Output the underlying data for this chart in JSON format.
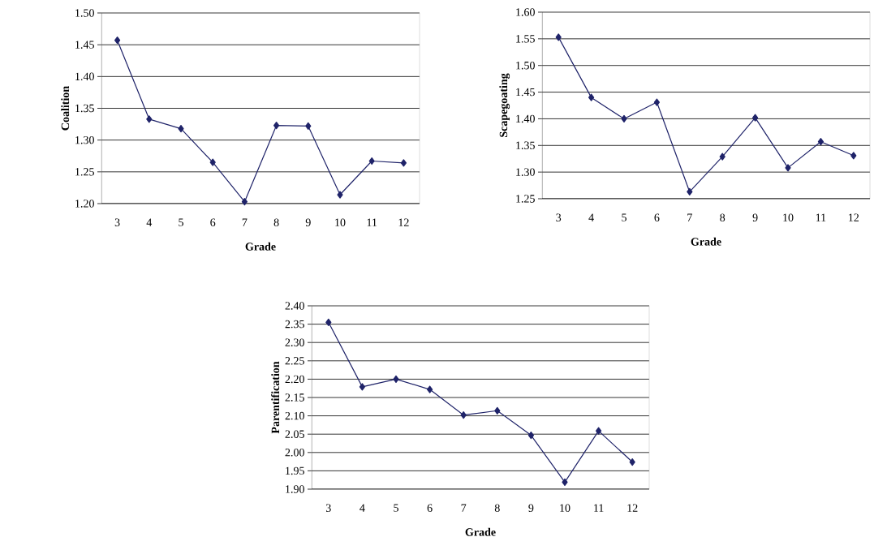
{
  "chart_data": [
    {
      "type": "line",
      "xlabel": "Grade",
      "ylabel": "Coalition",
      "categories": [
        "3",
        "4",
        "5",
        "6",
        "7",
        "8",
        "9",
        "10",
        "11",
        "12"
      ],
      "series": [
        {
          "color": "#1f2369",
          "values": [
            1.457,
            1.333,
            1.318,
            1.265,
            1.203,
            1.323,
            1.322,
            1.214,
            1.267,
            1.264
          ]
        }
      ],
      "ylim": [
        1.2,
        1.5
      ],
      "yticks": [
        {
          "value": 1.2,
          "label": "1.20"
        },
        {
          "value": 1.25,
          "label": "1.25"
        },
        {
          "value": 1.3,
          "label": "1.30"
        },
        {
          "value": 1.35,
          "label": "1.35"
        },
        {
          "value": 1.4,
          "label": "1.40"
        },
        {
          "value": 1.45,
          "label": "1.45"
        },
        {
          "value": 1.5,
          "label": "1.50"
        }
      ],
      "grid": "y",
      "marker": "diamond",
      "line_style": "solid"
    },
    {
      "type": "line",
      "xlabel": "Grade",
      "ylabel": "Scapegoating",
      "categories": [
        "3",
        "4",
        "5",
        "6",
        "7",
        "8",
        "9",
        "10",
        "11",
        "12"
      ],
      "series": [
        {
          "color": "#1f2369",
          "values": [
            1.553,
            1.44,
            1.4,
            1.431,
            1.263,
            1.329,
            1.402,
            1.308,
            1.357,
            1.331
          ]
        }
      ],
      "ylim": [
        1.25,
        1.6
      ],
      "yticks": [
        {
          "value": 1.25,
          "label": "1.25"
        },
        {
          "value": 1.3,
          "label": "1.30"
        },
        {
          "value": 1.35,
          "label": "1.35"
        },
        {
          "value": 1.4,
          "label": "1.40"
        },
        {
          "value": 1.45,
          "label": "1.45"
        },
        {
          "value": 1.5,
          "label": "1.50"
        },
        {
          "value": 1.55,
          "label": "1.55"
        },
        {
          "value": 1.6,
          "label": "1.60"
        }
      ],
      "grid": "y",
      "marker": "diamond",
      "line_style": "solid"
    },
    {
      "type": "line",
      "xlabel": "Grade",
      "ylabel": "Parentification",
      "categories": [
        "3",
        "4",
        "5",
        "6",
        "7",
        "8",
        "9",
        "10",
        "11",
        "12"
      ],
      "series": [
        {
          "color": "#1f2369",
          "values": [
            2.355,
            2.179,
            2.2,
            2.172,
            2.102,
            2.114,
            2.047,
            1.919,
            2.059,
            1.974
          ]
        }
      ],
      "ylim": [
        1.9,
        2.4
      ],
      "yticks": [
        {
          "value": 1.9,
          "label": "1.90"
        },
        {
          "value": 1.95,
          "label": "1.95"
        },
        {
          "value": 2.0,
          "label": "2.00"
        },
        {
          "value": 2.05,
          "label": "2.05"
        },
        {
          "value": 2.1,
          "label": "2.10"
        },
        {
          "value": 2.15,
          "label": "2.15"
        },
        {
          "value": 2.2,
          "label": "2.20"
        },
        {
          "value": 2.25,
          "label": "2.25"
        },
        {
          "value": 2.3,
          "label": "2.30"
        },
        {
          "value": 2.35,
          "label": "2.35"
        },
        {
          "value": 2.4,
          "label": "2.40"
        }
      ],
      "grid": "y",
      "marker": "diamond",
      "line_style": "solid"
    }
  ]
}
